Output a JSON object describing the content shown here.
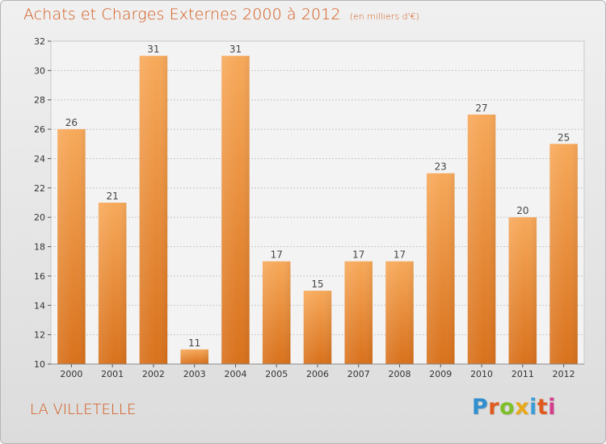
{
  "header": {
    "title": "Achats et Charges Externes 2000 à 2012",
    "subtitle": "(en milliers d'€)"
  },
  "footer": {
    "commune": "LA VILLETELLE",
    "brand": "Proxiti"
  },
  "colors": {
    "bar_top": "#f7a95a",
    "bar_bottom": "#d8711c",
    "title": "#d2581a",
    "brand": [
      "#2f8fcf",
      "#e05a1e",
      "#7fbf2a",
      "#e8a818",
      "#3b9cd8",
      "#e05a1e",
      "#d63c8c"
    ]
  },
  "chart_data": {
    "type": "bar",
    "title": "Achats et Charges Externes 2000 à 2012",
    "xlabel": "",
    "ylabel": "",
    "categories": [
      "2000",
      "2001",
      "2002",
      "2003",
      "2004",
      "2005",
      "2006",
      "2007",
      "2008",
      "2009",
      "2010",
      "2011",
      "2012"
    ],
    "values": [
      26,
      21,
      31,
      11,
      31,
      17,
      15,
      17,
      17,
      23,
      27,
      20,
      25
    ],
    "ylim": [
      10,
      32
    ],
    "yticks": [
      10,
      12,
      14,
      16,
      18,
      20,
      22,
      24,
      26,
      28,
      30,
      32
    ],
    "grid": true,
    "legend": "none"
  }
}
